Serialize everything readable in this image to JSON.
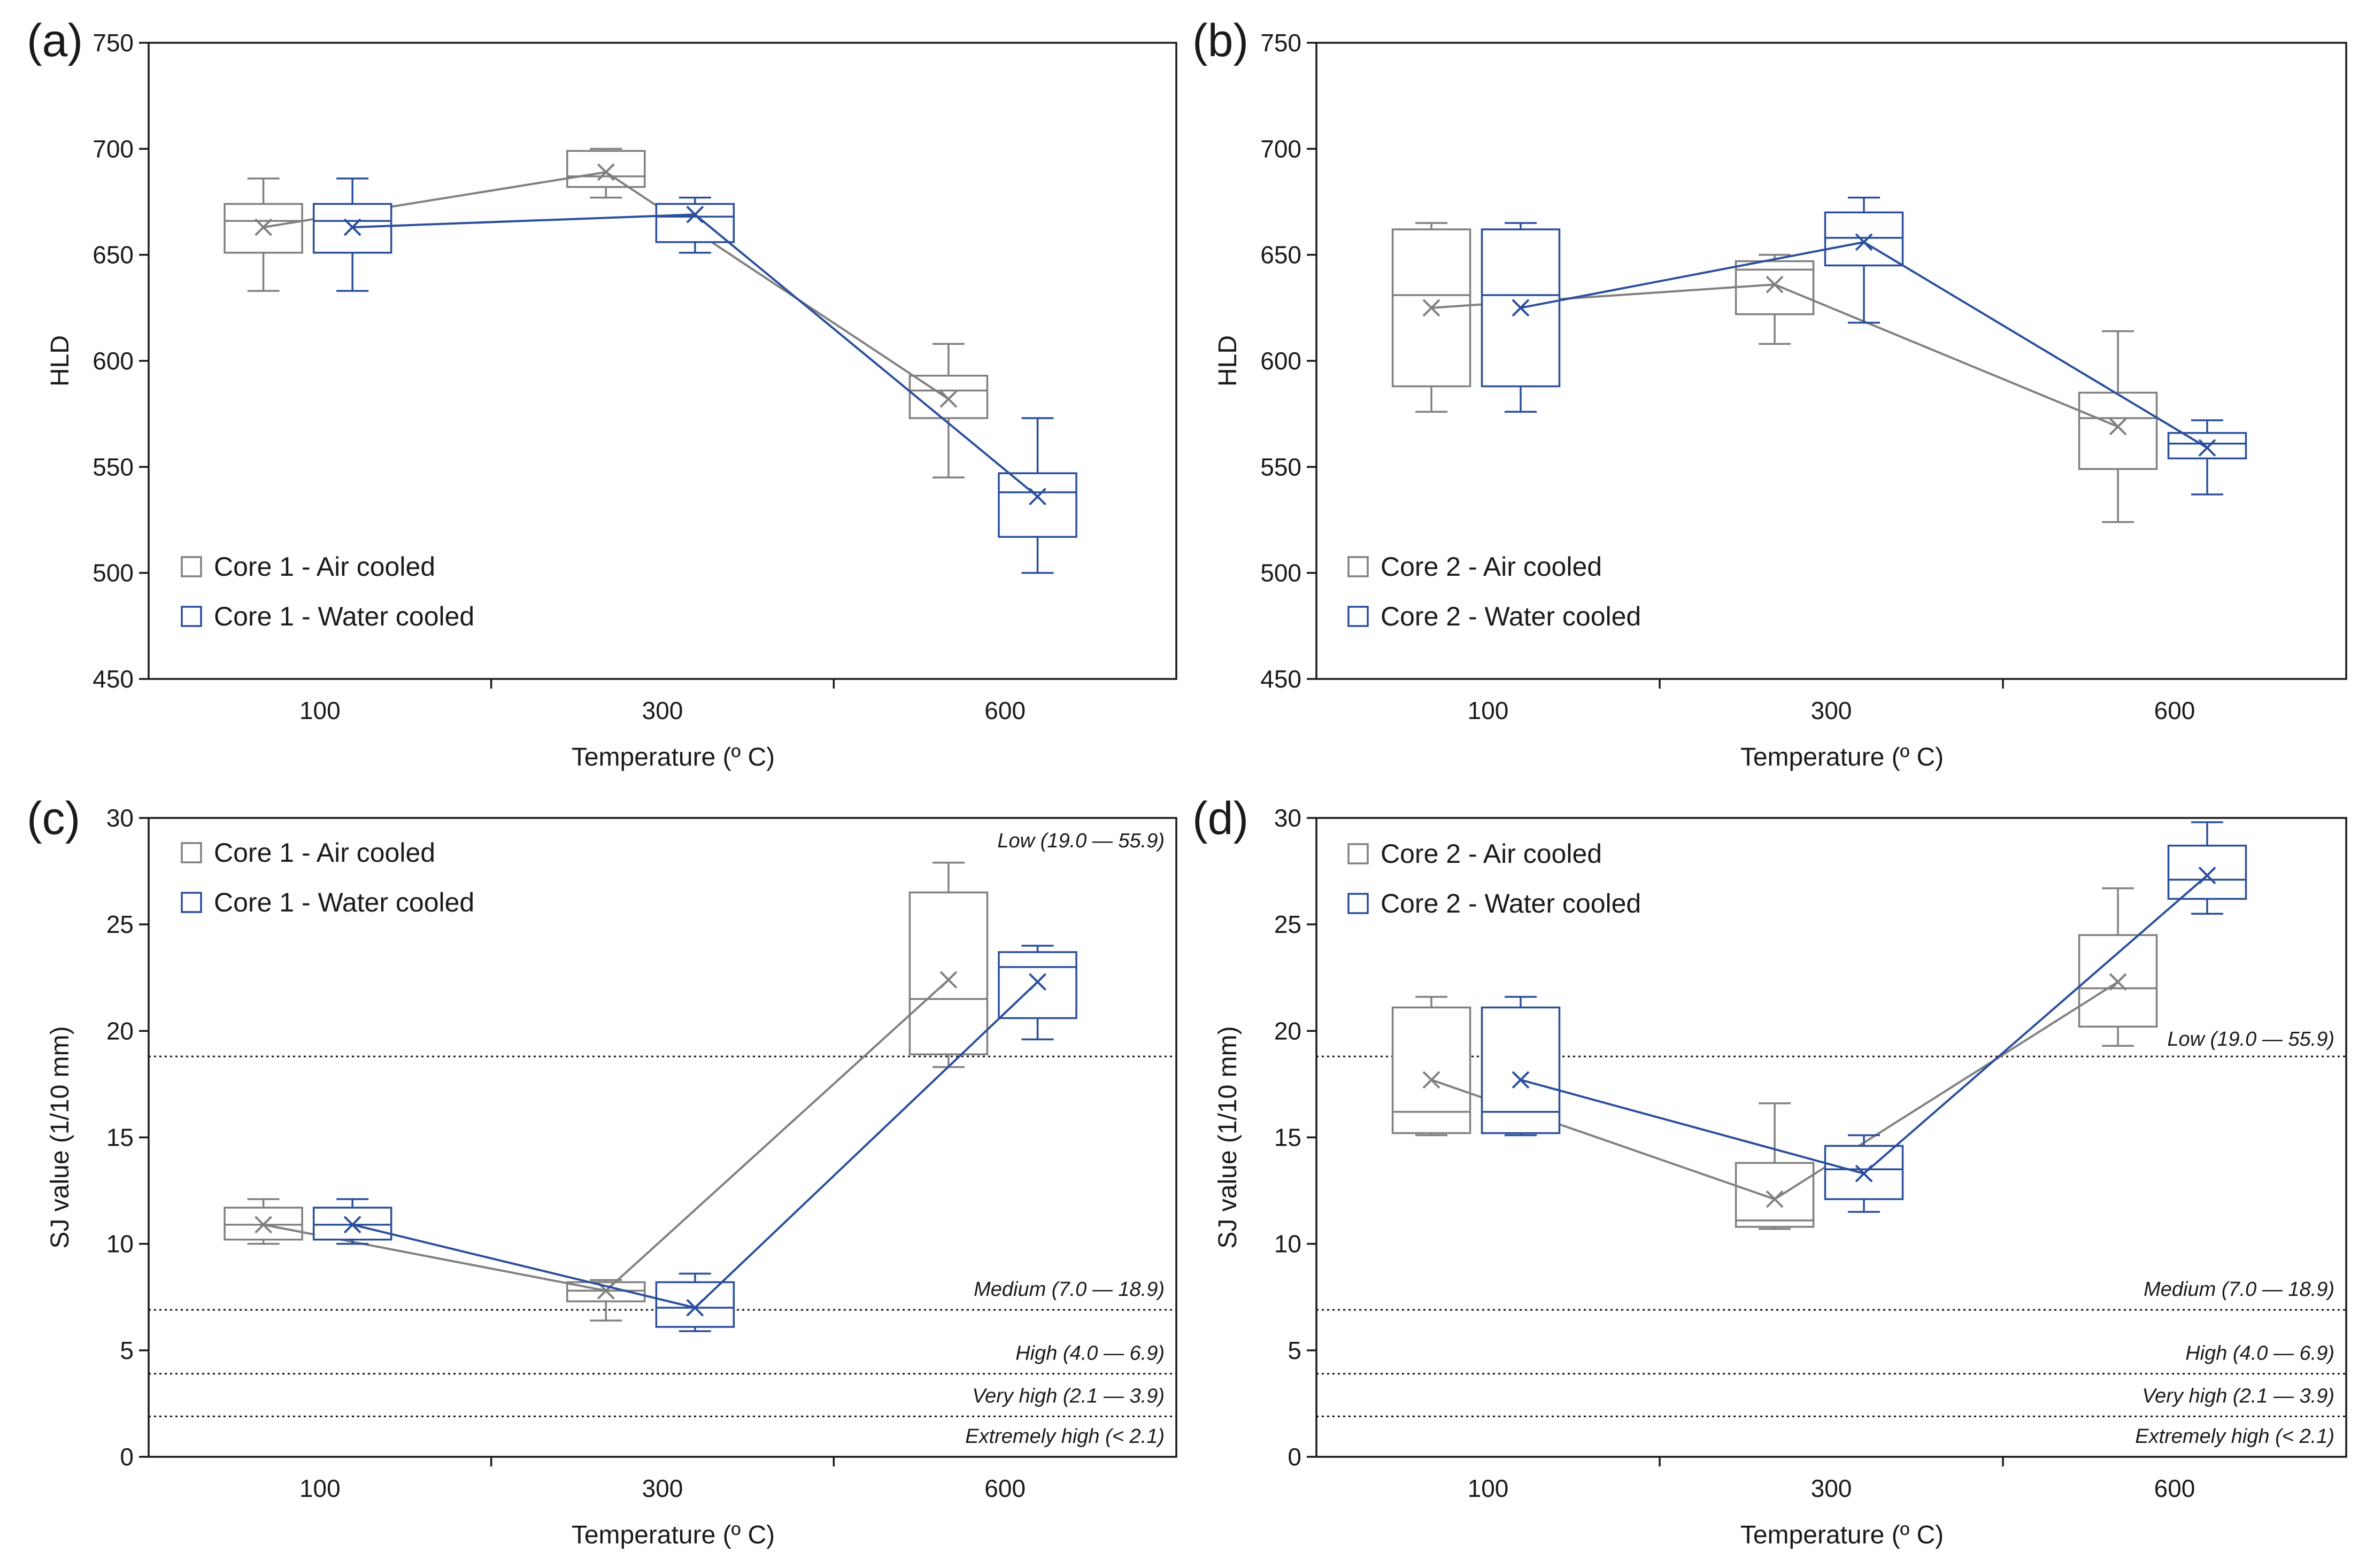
{
  "colors": {
    "air": "#808080",
    "water": "#2a4f9c",
    "axis": "#1a1a1a"
  },
  "chart_data": [
    {
      "id": "a",
      "type": "box",
      "panel_label": "(a)",
      "xlabel": "Temperature (º C)",
      "ylabel": "HLD",
      "ylim": [
        450,
        750
      ],
      "yticks": [
        "450",
        "500",
        "550",
        "600",
        "650",
        "700",
        "750"
      ],
      "categories": [
        "100",
        "300",
        "600"
      ],
      "legend_position": "bottom-left",
      "series": [
        {
          "name": "Core 1 - Air cooled",
          "boxes": [
            {
              "min": 633,
              "q1": 651,
              "median": 666,
              "q3": 674,
              "max": 686,
              "mean": 663
            },
            {
              "min": 677,
              "q1": 682,
              "median": 687,
              "q3": 699,
              "max": 700,
              "mean": 689
            },
            {
              "min": 545,
              "q1": 573,
              "median": 586,
              "q3": 593,
              "max": 608,
              "mean": 582
            }
          ]
        },
        {
          "name": "Core 1 - Water cooled",
          "boxes": [
            {
              "min": 633,
              "q1": 651,
              "median": 666,
              "q3": 674,
              "max": 686,
              "mean": 663
            },
            {
              "min": 651,
              "q1": 656,
              "median": 668,
              "q3": 674,
              "max": 677,
              "mean": 669
            },
            {
              "min": 500,
              "q1": 517,
              "median": 538,
              "q3": 547,
              "max": 573,
              "mean": 536
            }
          ]
        }
      ],
      "reference_lines": []
    },
    {
      "id": "b",
      "type": "box",
      "panel_label": "(b)",
      "xlabel": "Temperature (º C)",
      "ylabel": "HLD",
      "ylim": [
        450,
        750
      ],
      "yticks": [
        "450",
        "500",
        "550",
        "600",
        "650",
        "700",
        "750"
      ],
      "categories": [
        "100",
        "300",
        "600"
      ],
      "legend_position": "bottom-left",
      "series": [
        {
          "name": "Core 2 - Air cooled",
          "boxes": [
            {
              "min": 576,
              "q1": 588,
              "median": 631,
              "q3": 662,
              "max": 665,
              "mean": 625
            },
            {
              "min": 608,
              "q1": 622,
              "median": 643,
              "q3": 647,
              "max": 650,
              "mean": 636
            },
            {
              "min": 524,
              "q1": 549,
              "median": 573,
              "q3": 585,
              "max": 614,
              "mean": 569
            }
          ]
        },
        {
          "name": "Core 2 - Water cooled",
          "boxes": [
            {
              "min": 576,
              "q1": 588,
              "median": 631,
              "q3": 662,
              "max": 665,
              "mean": 625
            },
            {
              "min": 618,
              "q1": 645,
              "median": 658,
              "q3": 670,
              "max": 677,
              "mean": 656
            },
            {
              "min": 537,
              "q1": 554,
              "median": 561,
              "q3": 566,
              "max": 572,
              "mean": 559
            }
          ]
        }
      ],
      "reference_lines": []
    },
    {
      "id": "c",
      "type": "box",
      "panel_label": "(c)",
      "xlabel": "Temperature (º C)",
      "ylabel": "SJ value (1/10 mm)",
      "ylim": [
        0,
        30
      ],
      "yticks": [
        "0",
        "5",
        "10",
        "15",
        "20",
        "25",
        "30"
      ],
      "categories": [
        "100",
        "300",
        "600"
      ],
      "legend_position": "top-left",
      "series": [
        {
          "name": "Core 1 - Air cooled",
          "boxes": [
            {
              "min": 10.0,
              "q1": 10.2,
              "median": 10.9,
              "q3": 11.7,
              "max": 12.1,
              "mean": 10.9
            },
            {
              "min": 6.4,
              "q1": 7.3,
              "median": 7.8,
              "q3": 8.2,
              "max": 8.3,
              "mean": 7.8
            },
            {
              "min": 18.3,
              "q1": 18.9,
              "median": 21.5,
              "q3": 26.5,
              "max": 27.9,
              "mean": 22.4
            }
          ]
        },
        {
          "name": "Core 1 - Water cooled",
          "boxes": [
            {
              "min": 10.0,
              "q1": 10.2,
              "median": 10.9,
              "q3": 11.7,
              "max": 12.1,
              "mean": 10.9
            },
            {
              "min": 5.9,
              "q1": 6.1,
              "median": 7.0,
              "q3": 8.2,
              "max": 8.6,
              "mean": 7.0
            },
            {
              "min": 19.6,
              "q1": 20.6,
              "median": 23.0,
              "q3": 23.7,
              "max": 24.0,
              "mean": 22.3
            }
          ]
        }
      ],
      "reference_lines": [
        {
          "value": 18.8,
          "label": "Low (19.0 — 55.9)"
        },
        {
          "value": 6.9,
          "label": "Medium (7.0 — 18.9)"
        },
        {
          "value": 3.9,
          "label": "High (4.0 — 6.9)"
        },
        {
          "value": 1.9,
          "label": "Very high (2.1 — 3.9)"
        },
        {
          "value": null,
          "label": "Extremely high (< 2.1)"
        }
      ]
    },
    {
      "id": "d",
      "type": "box",
      "panel_label": "(d)",
      "xlabel": "Temperature (º C)",
      "ylabel": "SJ value (1/10 mm)",
      "ylim": [
        0,
        30
      ],
      "yticks": [
        "0",
        "5",
        "10",
        "15",
        "20",
        "25",
        "30"
      ],
      "categories": [
        "100",
        "300",
        "600"
      ],
      "legend_position": "top-left",
      "series": [
        {
          "name": "Core 2 - Air cooled",
          "boxes": [
            {
              "min": 15.1,
              "q1": 15.2,
              "median": 16.2,
              "q3": 21.1,
              "max": 21.6,
              "mean": 17.7
            },
            {
              "min": 10.7,
              "q1": 10.8,
              "median": 11.1,
              "q3": 13.8,
              "max": 16.6,
              "mean": 12.1
            },
            {
              "min": 19.3,
              "q1": 20.2,
              "median": 22.0,
              "q3": 24.5,
              "max": 26.7,
              "mean": 22.3
            }
          ]
        },
        {
          "name": "Core 2 - Water cooled",
          "boxes": [
            {
              "min": 15.1,
              "q1": 15.2,
              "median": 16.2,
              "q3": 21.1,
              "max": 21.6,
              "mean": 17.7
            },
            {
              "min": 11.5,
              "q1": 12.1,
              "median": 13.5,
              "q3": 14.6,
              "max": 15.1,
              "mean": 13.3
            },
            {
              "min": 25.5,
              "q1": 26.2,
              "median": 27.1,
              "q3": 28.7,
              "max": 29.8,
              "mean": 27.3
            }
          ]
        }
      ],
      "reference_lines": [
        {
          "value": 18.8,
          "label": "Low (19.0 — 55.9)"
        },
        {
          "value": 6.9,
          "label": "Medium (7.0 — 18.9)"
        },
        {
          "value": 3.9,
          "label": "High (4.0 — 6.9)"
        },
        {
          "value": 1.9,
          "label": "Very high (2.1 — 3.9)"
        },
        {
          "value": null,
          "label": "Extremely high (< 2.1)"
        }
      ]
    }
  ]
}
